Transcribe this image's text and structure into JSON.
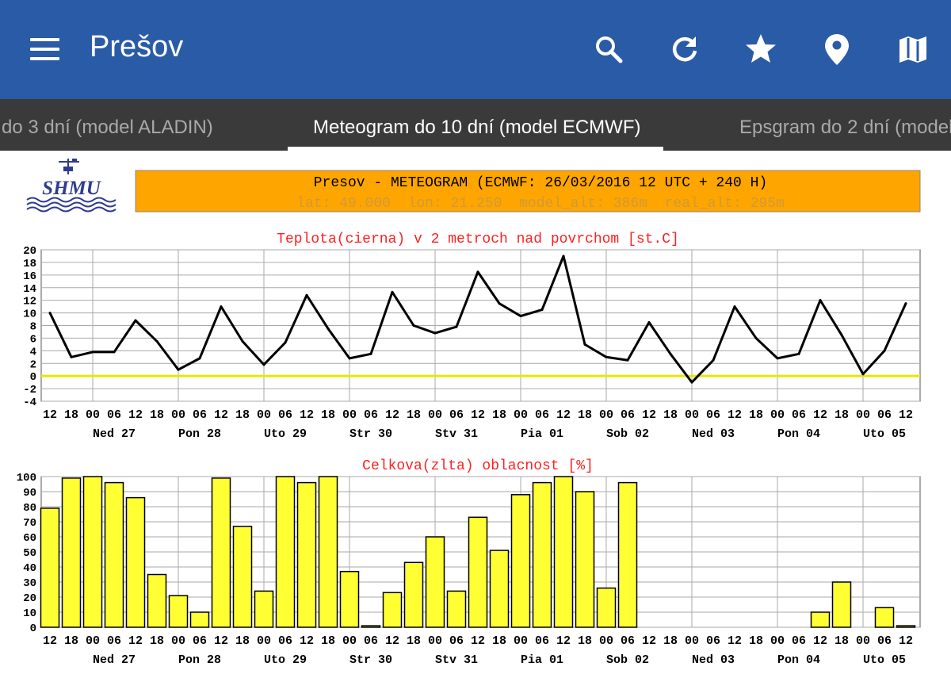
{
  "appbar": {
    "title": "Prešov",
    "actions": [
      "search-icon",
      "refresh-icon",
      "star-icon",
      "location-pin-icon",
      "map-icon"
    ],
    "color": "#2a5ba6"
  },
  "tabs": [
    {
      "label": "do 3 dní (model ALADIN)",
      "active": false
    },
    {
      "label": "Meteogram do 10 dní (model ECMWF)",
      "active": true
    },
    {
      "label": "Epsgram do 2 dní (model",
      "active": false
    }
  ],
  "meteogram": {
    "logo_text": "SHMU",
    "header_title": "Presov - METEOGRAM (ECMWF: 26/03/2016 12 UTC + 240 H)",
    "header_meta": "lat: 49.000  lon: 21.250  model_alt: 386m  real_alt: 295m",
    "header_color": "#ffa500"
  },
  "chart_data": [
    {
      "type": "line",
      "title": "Teplota(cierna) v 2 metroch nad povrchom [st.C]",
      "x": [
        "12",
        "18",
        "00",
        "06",
        "12",
        "18",
        "00",
        "06",
        "12",
        "18",
        "00",
        "06",
        "12",
        "18",
        "00",
        "06",
        "12",
        "18",
        "00",
        "06",
        "12",
        "18",
        "00",
        "06",
        "12",
        "18",
        "00",
        "06",
        "12",
        "18",
        "00",
        "06",
        "12",
        "18",
        "00",
        "06",
        "12",
        "18",
        "00",
        "06",
        "12"
      ],
      "day_labels": [
        "Ned 27",
        "Pon 28",
        "Uto 29",
        "Str 30",
        "Stv 31",
        "Pia 01",
        "Sob 02",
        "Ned 03",
        "Pon 04",
        "Uto 05"
      ],
      "yticks": [
        20,
        18,
        16,
        14,
        12,
        10,
        8,
        6,
        4,
        2,
        0,
        -2,
        -4
      ],
      "ylim": [
        -4,
        20
      ],
      "grid": true,
      "zero_line_color": "#e6e600",
      "series": [
        {
          "values": [
            10,
            3,
            3.8,
            3.8,
            8.8,
            5.5,
            1,
            2.8,
            11,
            5.5,
            1.8,
            5.3,
            12.8,
            7.5,
            2.8,
            3.5,
            13.3,
            8,
            6.8,
            7.8,
            16.5,
            11.5,
            9.5,
            10.5,
            19,
            5,
            3,
            2.5,
            8.5,
            3.5,
            -1,
            2.5,
            11,
            6,
            2.8,
            3.5,
            12,
            6.5,
            0.3,
            4,
            11.5
          ]
        }
      ]
    },
    {
      "type": "bar",
      "title": "Celkova(zlta) oblacnost [%]",
      "categories": [
        "12",
        "18",
        "00",
        "06",
        "12",
        "18",
        "00",
        "06",
        "12",
        "18",
        "00",
        "06",
        "12",
        "18",
        "00",
        "06",
        "12",
        "18",
        "00",
        "06",
        "12",
        "18",
        "00",
        "06",
        "12",
        "18",
        "00",
        "06",
        "12",
        "18",
        "00",
        "06",
        "12",
        "18",
        "00",
        "06",
        "12",
        "18",
        "00",
        "06",
        "12"
      ],
      "day_labels": [
        "Ned 27",
        "Pon 28",
        "Uto 29",
        "Str 30",
        "Stv 31",
        "Pia 01",
        "Sob 02",
        "Ned 03",
        "Pon 04",
        "Uto 05"
      ],
      "yticks": [
        100,
        90,
        80,
        70,
        60,
        50,
        40,
        30,
        20,
        10,
        0
      ],
      "ylim": [
        0,
        100
      ],
      "grid": true,
      "bar_color": "#ffff33",
      "series": [
        {
          "values": [
            79,
            99,
            100,
            96,
            86,
            35,
            21,
            10,
            99,
            67,
            24,
            100,
            96,
            100,
            37,
            1,
            23,
            43,
            60,
            24,
            73,
            51,
            88,
            96,
            100,
            90,
            26,
            96,
            0,
            0,
            0,
            0,
            0,
            0,
            0,
            0,
            10,
            30,
            0,
            13,
            1
          ]
        }
      ]
    }
  ]
}
